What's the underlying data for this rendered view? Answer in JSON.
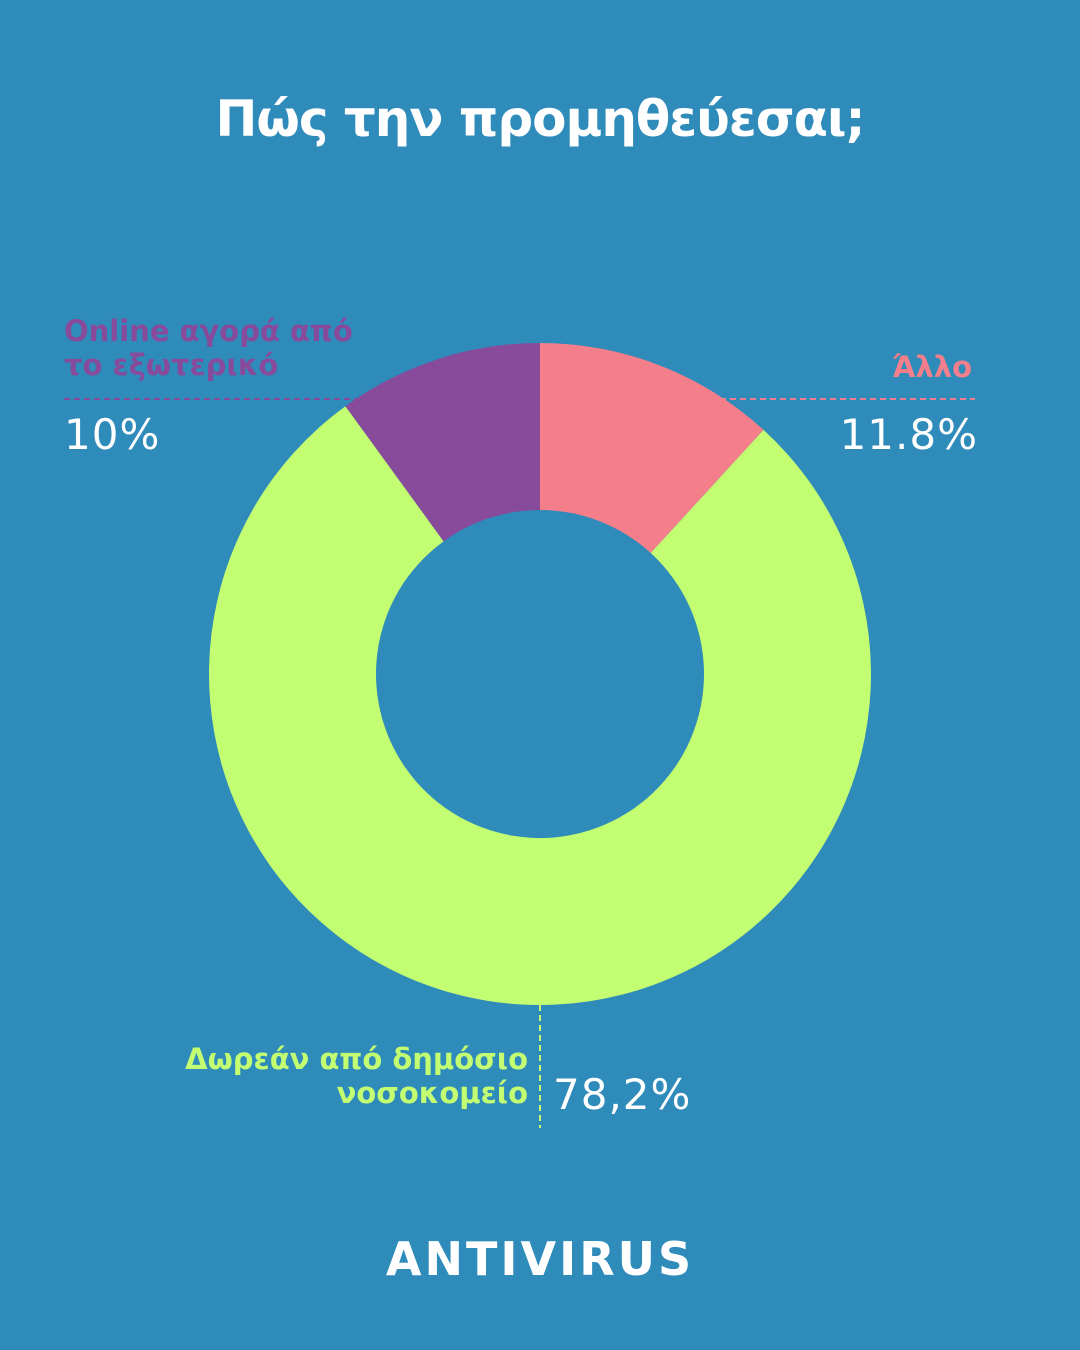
{
  "title": "Πώς την προμηθεύεσαι;",
  "brand": "ANTIVIRUS",
  "chart_data": {
    "type": "pie",
    "donut": true,
    "title": "Πώς την προμηθεύεσαι;",
    "slices": [
      {
        "label": "Άλλο",
        "value": 11.8,
        "value_label": "11.8%",
        "color": "#f47f8b"
      },
      {
        "label": "Δωρεάν από δημόσιο νοσοκομείο",
        "value": 78.2,
        "value_label": "78,2%",
        "color": "#c3fd72"
      },
      {
        "label": "Online αγορά από το εξωτερικό",
        "value": 10,
        "value_label": "10%",
        "color": "#884b9c"
      }
    ]
  },
  "labels": {
    "online_line1": "Online αγορά από",
    "online_line2": "το εξωτερικό",
    "free_line1": "Δωρεάν από δημόσιο",
    "free_line2": "νοσοκομείο"
  },
  "colors": {
    "background": "#2e8bba",
    "text": "#ffffff"
  }
}
